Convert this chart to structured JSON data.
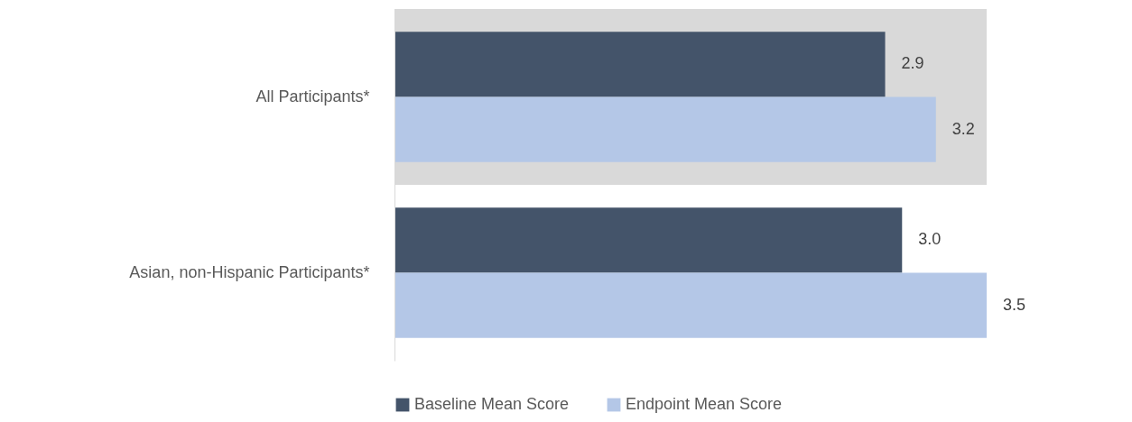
{
  "chart_data": {
    "type": "bar",
    "orientation": "horizontal",
    "categories": [
      "All Participants*",
      "Asian, non-Hispanic  Participants*"
    ],
    "series": [
      {
        "name": "Baseline Mean Score",
        "color": "#44546a",
        "values": [
          2.9,
          3.0
        ],
        "value_labels": [
          "2.9",
          "3.0"
        ]
      },
      {
        "name": "Endpoint Mean Score",
        "color": "#b4c7e7",
        "values": [
          3.2,
          3.5
        ],
        "value_labels": [
          "3.2",
          "3.5"
        ]
      }
    ],
    "legend": "bottom",
    "bands": [
      {
        "axis": "y",
        "from": "All Participants*",
        "to": "All Participants*",
        "color": "#d9d9d9"
      }
    ]
  }
}
